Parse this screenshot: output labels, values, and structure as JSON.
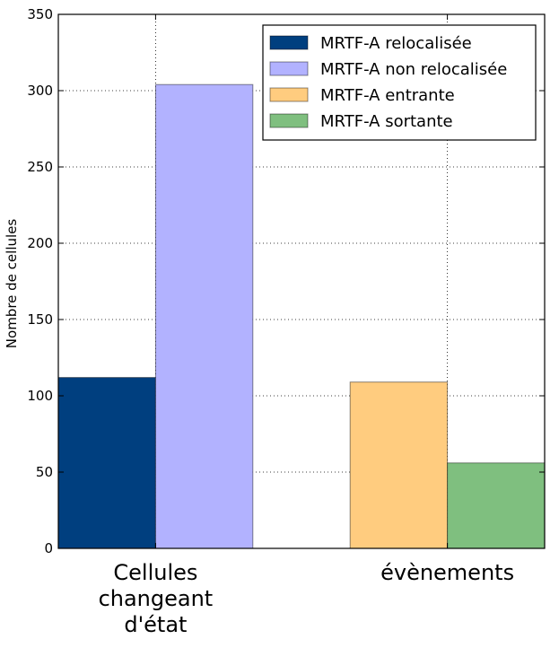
{
  "chart_data": {
    "type": "bar",
    "categories": [
      "Cellules\nchangeant\nd'état",
      "évènements"
    ],
    "series": [
      {
        "name": "MRTF-A relocalisée",
        "color": "#003F7F",
        "values": [
          112,
          null
        ]
      },
      {
        "name": "MRTF-A non relocalisée",
        "color": "#B2B2FF",
        "values": [
          304,
          null
        ]
      },
      {
        "name": "MRTF-A entrante",
        "color": "#FFCC7F",
        "values": [
          null,
          109
        ]
      },
      {
        "name": "MRTF-A sortante",
        "color": "#7FBF7F",
        "values": [
          null,
          56
        ]
      }
    ],
    "title": "",
    "xlabel": "",
    "ylabel": "Nombre de cellules",
    "ylim": [
      0,
      350
    ],
    "yticks": [
      0,
      50,
      100,
      150,
      200,
      250,
      300,
      350
    ],
    "grid": true,
    "legend_position": "top-right"
  }
}
